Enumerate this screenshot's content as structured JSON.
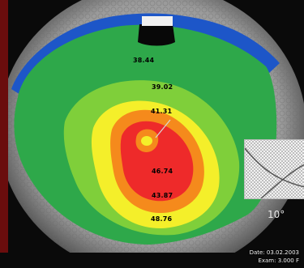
{
  "map": {
    "readings": {
      "r1": "38.44",
      "r2": "39.02",
      "r3": "41.31",
      "r4": "46.74",
      "r5": "43.87",
      "r6": "48.76"
    },
    "inset_angle": "10°",
    "footer": {
      "line1": "Date: 03.02.2003",
      "line2": "Exam: 3.000 F"
    },
    "colors": {
      "steep_red": "#ee2a2a",
      "orange": "#f58a1c",
      "yellow": "#f4ef2a",
      "green": "#2ea84a",
      "blue": "#1d56c8"
    }
  }
}
